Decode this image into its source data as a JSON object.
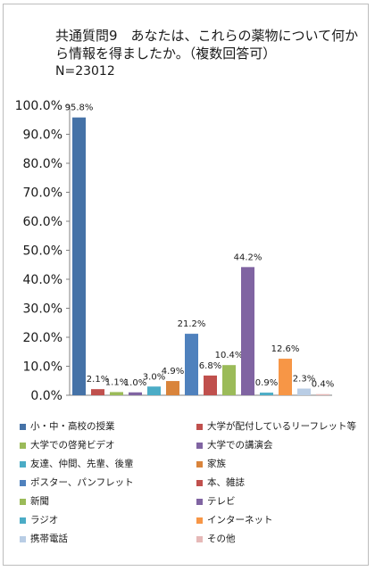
{
  "chart_data": {
    "type": "bar",
    "title": "共通質問9　あなたは、これらの薬物について何から情報を得ましたか。（複数回答可）",
    "subtitle": "N=23012",
    "xlabel": "",
    "ylabel": "",
    "ylim": [
      0,
      100
    ],
    "yticks": [
      "0.0%",
      "10.0%",
      "20.0%",
      "30.0%",
      "40.0%",
      "50.0%",
      "60.0%",
      "70.0%",
      "80.0%",
      "90.0%",
      "100.0%"
    ],
    "grid": false,
    "legend_position": "bottom",
    "categories": [
      "小・中・高校の授業",
      "大学が配付しているリーフレット等",
      "大学での啓発ビデオ",
      "大学での講演会",
      "友達、仲間、先輩、後輩",
      "家族",
      "ポスター、パンフレット",
      "本、雑誌",
      "新聞",
      "テレビ",
      "ラジオ",
      "インターネット",
      "携帯電話",
      "その他"
    ],
    "values": [
      95.8,
      2.1,
      1.1,
      1.0,
      3.0,
      4.9,
      21.2,
      6.8,
      10.4,
      44.2,
      0.9,
      12.6,
      2.3,
      0.4
    ],
    "labels": [
      "95.8%",
      "2.1%",
      "1.1%",
      "1.0%",
      "3.0%",
      "4.9%",
      "21.2%",
      "6.8%",
      "10.4%",
      "44.2%",
      "0.9%",
      "12.6%",
      "2.3%",
      "0.4%"
    ],
    "colors": [
      "#4572a7",
      "#c0504d",
      "#9bbb59",
      "#8064a2",
      "#4bacc6",
      "#d9843b",
      "#4f81bd",
      "#c0504d",
      "#9bbb59",
      "#8064a2",
      "#4bacc6",
      "#f79646",
      "#b9cde5",
      "#e6b9b8"
    ]
  }
}
